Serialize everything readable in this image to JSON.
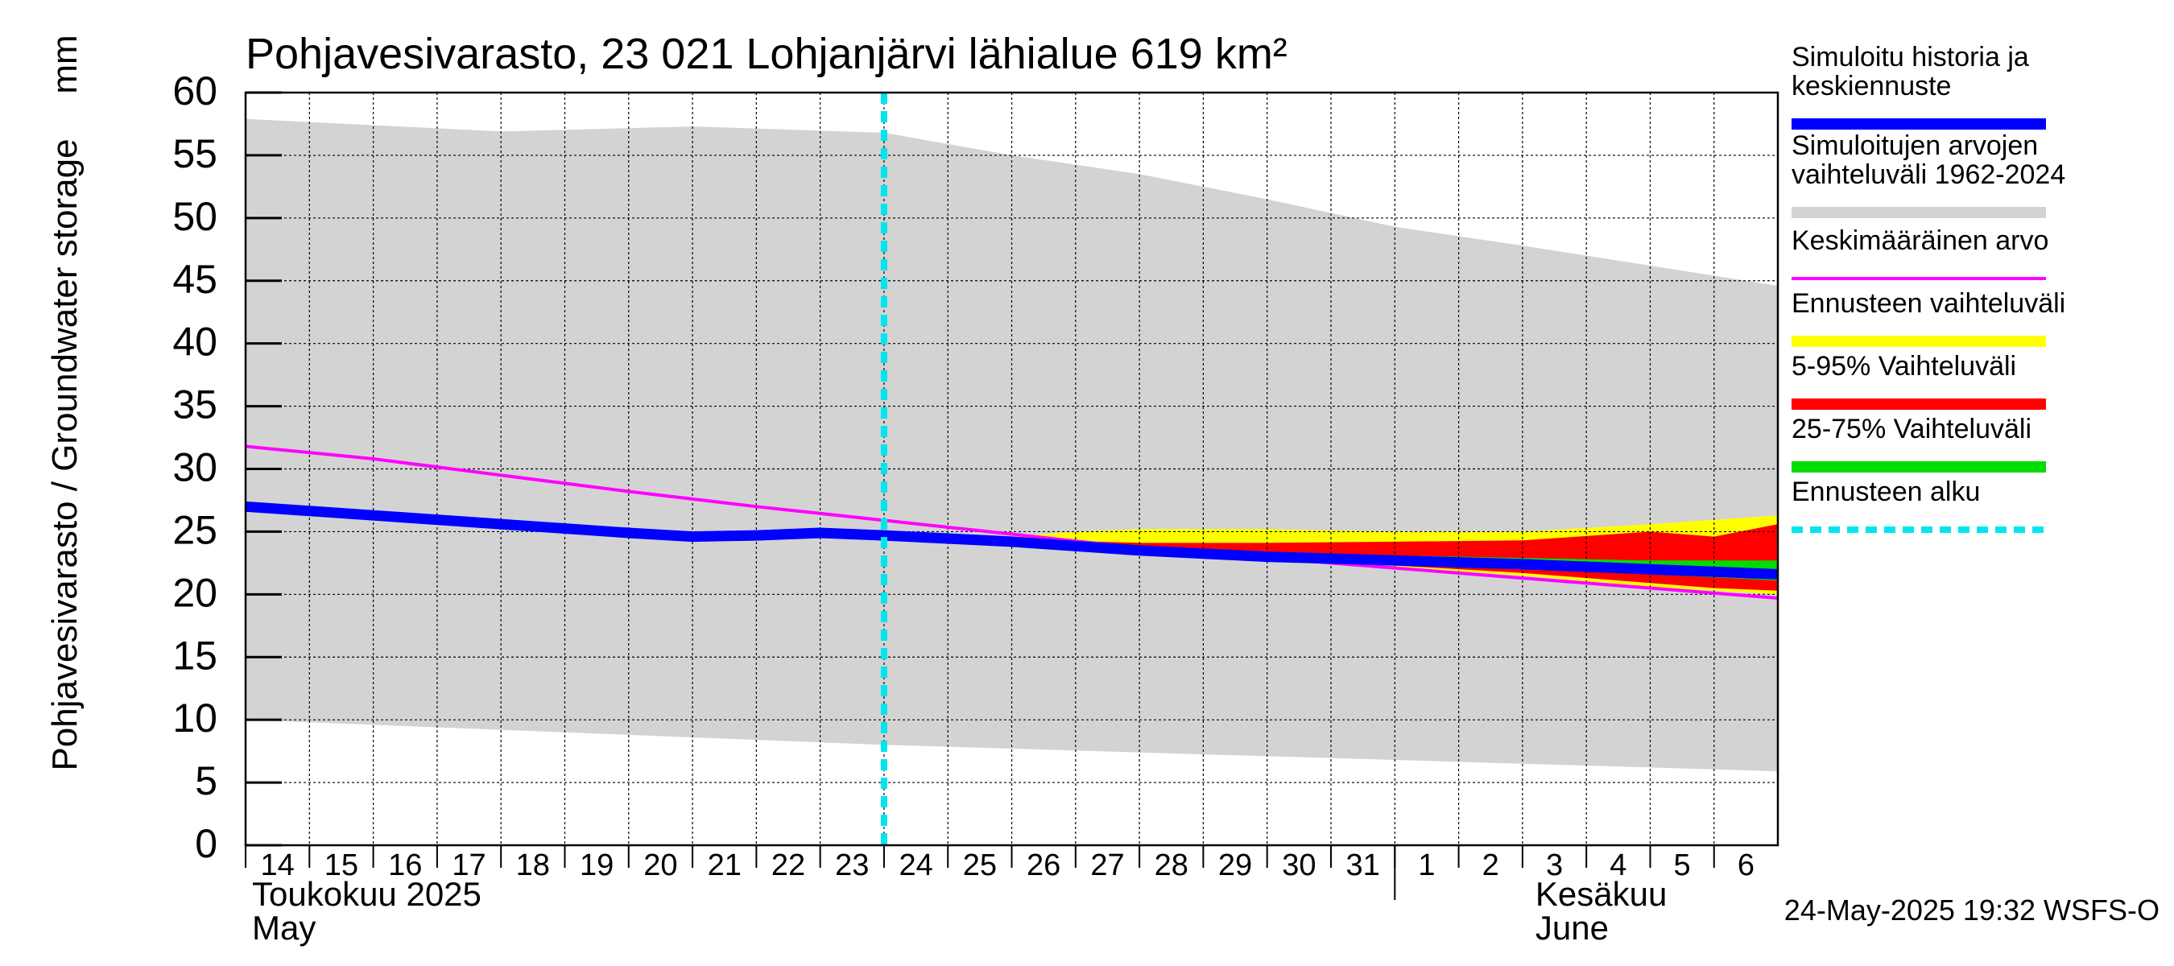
{
  "chart_data": {
    "type": "area",
    "title": "Pohjavesivarasto, 23 021 Lohjanjärvi lähialue 619 km²",
    "ylabel": "Pohjavesivarasto / Groundwater storage",
    "yunit": "mm",
    "ylim": [
      0,
      60
    ],
    "yticks": [
      "0",
      "5",
      "10",
      "15",
      "20",
      "25",
      "30",
      "35",
      "40",
      "45",
      "50",
      "55",
      "60"
    ],
    "xlim": [
      "2025-05-14",
      "2025-06-06T23:59"
    ],
    "xticks": [
      "14",
      "15",
      "16",
      "17",
      "18",
      "19",
      "20",
      "21",
      "22",
      "23",
      "24",
      "25",
      "26",
      "27",
      "28",
      "29",
      "30",
      "31",
      "1",
      "2",
      "3",
      "4",
      "5",
      "6"
    ],
    "month_labels": [
      {
        "top": "Toukokuu  2025",
        "bottom": "May"
      },
      {
        "top": "Kesäkuu",
        "bottom": "June"
      }
    ],
    "grid": true,
    "legend_placement": "right",
    "forecast_start": "2025-05-24",
    "footer": "24-May-2025 19:32 WSFS-O",
    "series": [
      {
        "name": "Simuloitu historia ja keskiennuste",
        "color": "#0000ff",
        "x": [
          "2025-05-14",
          "2025-05-16",
          "2025-05-18",
          "2025-05-20",
          "2025-05-21",
          "2025-05-22",
          "2025-05-23",
          "2025-05-24",
          "2025-05-26",
          "2025-05-28",
          "2025-05-30",
          "2025-06-01",
          "2025-06-03",
          "2025-06-05",
          "2025-06-06T23:59"
        ],
        "y": [
          27.0,
          26.3,
          25.6,
          24.9,
          24.6,
          24.7,
          24.9,
          24.7,
          24.2,
          23.5,
          23.0,
          22.7,
          22.4,
          22.0,
          21.6
        ]
      },
      {
        "name": "Simuloitujen arvojen vaihteluväli 1962-2024",
        "color": "#d3d3d3",
        "x": [
          "2025-05-14",
          "2025-05-18",
          "2025-05-21",
          "2025-05-24",
          "2025-05-26",
          "2025-05-28",
          "2025-05-30",
          "2025-06-01",
          "2025-06-03",
          "2025-06-05",
          "2025-06-06T23:59"
        ],
        "upper": [
          57.9,
          56.9,
          57.3,
          56.8,
          55.0,
          53.5,
          51.5,
          49.3,
          47.8,
          46.2,
          44.6
        ],
        "lower": [
          10.0,
          9.2,
          8.6,
          8.0,
          7.7,
          7.4,
          7.1,
          6.8,
          6.5,
          6.2,
          5.9
        ]
      },
      {
        "name": "Keskimääräinen arvo",
        "color": "#ff00ff",
        "x": [
          "2025-05-14",
          "2025-05-16",
          "2025-05-18",
          "2025-05-20",
          "2025-05-22",
          "2025-05-24",
          "2025-05-26",
          "2025-05-28",
          "2025-05-30",
          "2025-06-01",
          "2025-06-03",
          "2025-06-05",
          "2025-06-06T23:59"
        ],
        "y": [
          31.8,
          30.8,
          29.5,
          28.2,
          27.0,
          25.9,
          24.8,
          23.7,
          22.9,
          22.1,
          21.3,
          20.5,
          19.7
        ]
      },
      {
        "name": "Ennusteen vaihteluväli",
        "color": "#ffff00",
        "x": [
          "2025-05-24",
          "2025-05-26",
          "2025-05-27",
          "2025-05-28",
          "2025-05-30",
          "2025-06-01",
          "2025-06-03",
          "2025-06-05",
          "2025-06-06T23:59"
        ],
        "upper": [
          24.7,
          24.6,
          25.0,
          25.2,
          25.2,
          25.0,
          25.0,
          25.6,
          26.3
        ],
        "lower": [
          24.7,
          24.1,
          23.7,
          23.3,
          22.7,
          22.2,
          21.5,
          20.6,
          20.0
        ]
      },
      {
        "name": "5-95% Vaihteluväli",
        "color": "#ff0000",
        "x": [
          "2025-05-24",
          "2025-05-26",
          "2025-05-28",
          "2025-05-30",
          "2025-06-01",
          "2025-06-03",
          "2025-06-05",
          "2025-06-06",
          "2025-06-06T23:59"
        ],
        "upper": [
          24.7,
          24.4,
          24.1,
          24.1,
          24.2,
          24.3,
          25.0,
          24.6,
          25.6
        ],
        "lower": [
          24.7,
          24.1,
          23.4,
          22.8,
          22.3,
          21.7,
          20.9,
          20.5,
          20.3
        ]
      },
      {
        "name": "25-75% Vaihteluväli",
        "color": "#00dd00",
        "x": [
          "2025-05-24",
          "2025-05-26",
          "2025-05-28",
          "2025-05-30",
          "2025-06-01",
          "2025-06-03",
          "2025-06-05",
          "2025-06-06T23:59"
        ],
        "upper": [
          24.7,
          24.3,
          23.7,
          23.3,
          23.1,
          22.9,
          22.7,
          22.7
        ],
        "lower": [
          24.7,
          24.2,
          23.4,
          22.9,
          22.5,
          22.1,
          21.6,
          21.1
        ]
      },
      {
        "name": "Ennusteen alku",
        "color": "#00e5ee"
      }
    ]
  }
}
